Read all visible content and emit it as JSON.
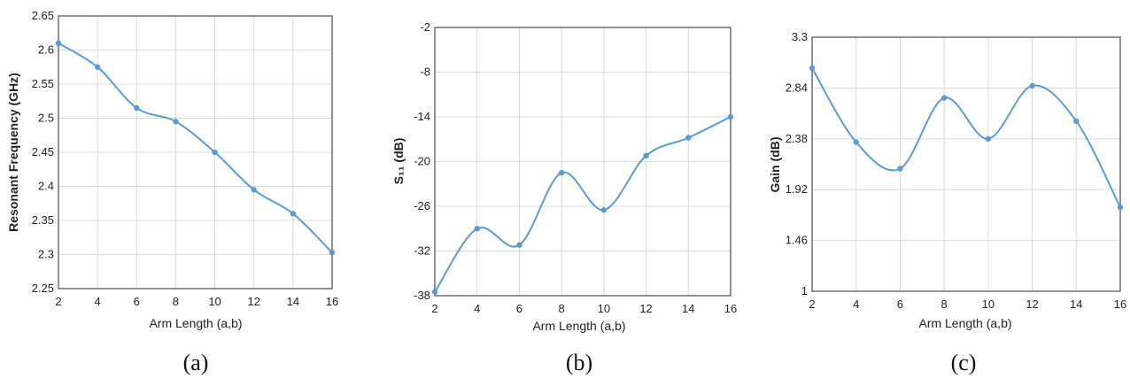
{
  "chart_data": [
    {
      "type": "line",
      "caption": "(a)",
      "xlabel": "Arm Length (a,b)",
      "ylabel": "Resonant Frequency (GHz)",
      "x": [
        2,
        4,
        6,
        8,
        10,
        12,
        14,
        16
      ],
      "values": [
        2.61,
        2.575,
        2.515,
        2.495,
        2.45,
        2.395,
        2.36,
        2.303
      ],
      "xlim": [
        2,
        16
      ],
      "ylim": [
        2.25,
        2.65
      ],
      "xticks": [
        "2",
        "4",
        "6",
        "8",
        "10",
        "12",
        "14",
        "16"
      ],
      "yticks": [
        "2.25",
        "2.3",
        "2.35",
        "2.4",
        "2.45",
        "2.5",
        "2.55",
        "2.6",
        "2.65"
      ],
      "ytick_values": [
        2.25,
        2.3,
        2.35,
        2.4,
        2.45,
        2.5,
        2.55,
        2.6,
        2.65
      ],
      "grid": true,
      "color": "#5B9BD5"
    },
    {
      "type": "line",
      "caption": "(b)",
      "xlabel": "Arm Length (a,b)",
      "ylabel": "S₁₁ (dB)",
      "x": [
        2,
        4,
        6,
        8,
        10,
        12,
        14,
        16
      ],
      "values": [
        -37.5,
        -29,
        -31.2,
        -21.5,
        -26.5,
        -19.2,
        -16.8,
        -14
      ],
      "xlim": [
        2,
        16
      ],
      "ylim": [
        -38,
        -2
      ],
      "xticks": [
        "2",
        "4",
        "6",
        "8",
        "10",
        "12",
        "14",
        "16"
      ],
      "yticks": [
        "-38",
        "-32",
        "-26",
        "-20",
        "-14",
        "-8",
        "-2"
      ],
      "ytick_values": [
        -38,
        -32,
        -26,
        -20,
        -14,
        -8,
        -2
      ],
      "grid": true,
      "color": "#5B9BD5"
    },
    {
      "type": "line",
      "caption": "(c)",
      "xlabel": "Arm Length (a,b)",
      "ylabel": "Gain (dB)",
      "x": [
        2,
        4,
        6,
        8,
        10,
        12,
        14,
        16
      ],
      "values": [
        3.02,
        2.35,
        2.11,
        2.75,
        2.38,
        2.86,
        2.54,
        1.76
      ],
      "xlim": [
        2,
        16
      ],
      "ylim": [
        1,
        3.3
      ],
      "xticks": [
        "2",
        "4",
        "6",
        "8",
        "10",
        "12",
        "14",
        "16"
      ],
      "yticks": [
        "1",
        "1.46",
        "1.92",
        "2.38",
        "2.84",
        "3.3"
      ],
      "ytick_values": [
        1,
        1.46,
        1.92,
        2.38,
        2.84,
        3.3
      ],
      "grid": true,
      "color": "#5B9BD5"
    }
  ]
}
